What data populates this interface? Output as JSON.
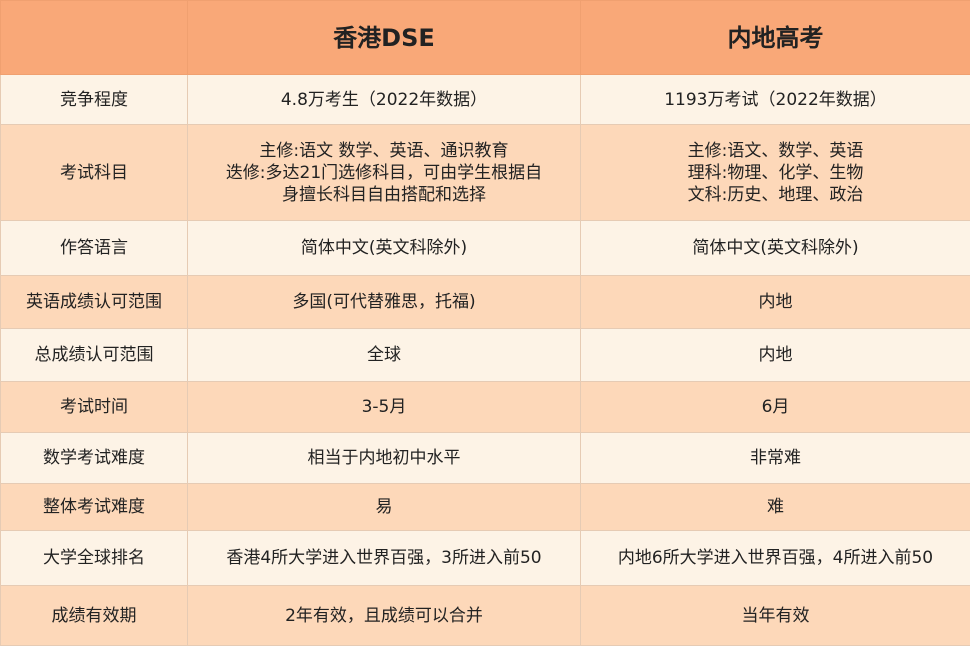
{
  "header": [
    "",
    "香港DSE",
    "内地高考"
  ],
  "rows": [
    {
      "label": "竞争程度",
      "dse": "4.8万考生（2022年数据）",
      "gaokao": "1193万考试（2022年数据）"
    },
    {
      "label": "考试科目",
      "dse": "主修:语文 数学、英语、通识教育\n迭修:多达21门选修科目，可由学生根据自\n身擅长科目自由搭配和选择",
      "gaokao": "主修:语文、数学、英语\n理科:物理、化学、生物\n文科:历史、地理、政治"
    },
    {
      "label": "作答语言",
      "dse": "简体中文(英文科除外)",
      "gaokao": "简体中文(英文科除外)"
    },
    {
      "label": "英语成绩认可范围",
      "dse": "多国(可代替雅思，托福)",
      "gaokao": "内地"
    },
    {
      "label": "总成绩认可范围",
      "dse": "全球",
      "gaokao": "内地"
    },
    {
      "label": "考试时间",
      "dse": "3-5月",
      "gaokao": "6月"
    },
    {
      "label": "数学考试难度",
      "dse": "相当于内地初中水平",
      "gaokao": "非常难"
    },
    {
      "label": "整体考试难度",
      "dse": "易",
      "gaokao": "难"
    },
    {
      "label": "大学全球排名",
      "dse": "香港4所大学进入世界百强，3所进入前50",
      "gaokao": "内地6所大学进入世界百强，4所进入前50"
    },
    {
      "label": "成绩有效期",
      "dse": "2年有效，且成绩可以合并",
      "gaokao": "当年有效"
    }
  ],
  "colors": {
    "header": "#f9a878",
    "row_light": "#fdf3e6",
    "row_dark": "#fdd8b9"
  }
}
